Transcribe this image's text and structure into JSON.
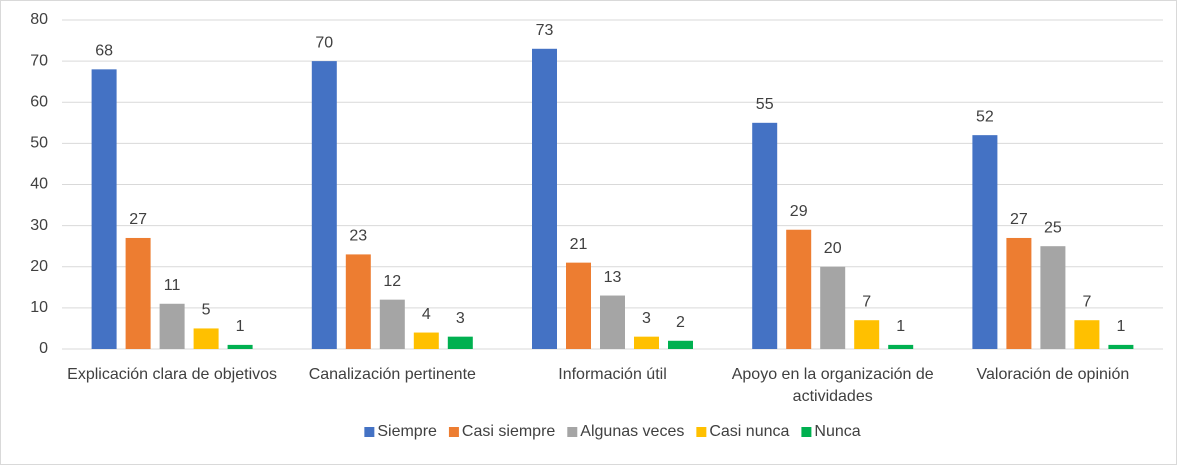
{
  "chart_data": {
    "type": "bar",
    "categories": [
      "Explicación clara de objetivos",
      "Canalización pertinente",
      "Información útil",
      "Apoyo en la organización de actividades",
      "Valoración de opinión"
    ],
    "series": [
      {
        "name": "Siempre",
        "color": "#4472c4",
        "values": [
          68,
          70,
          73,
          55,
          52
        ]
      },
      {
        "name": "Casi siempre",
        "color": "#ed7d31",
        "values": [
          27,
          23,
          21,
          29,
          27
        ]
      },
      {
        "name": "Algunas veces",
        "color": "#a5a5a5",
        "values": [
          11,
          12,
          13,
          20,
          25
        ]
      },
      {
        "name": "Casi nunca",
        "color": "#ffc000",
        "values": [
          5,
          4,
          3,
          7,
          7
        ]
      },
      {
        "name": "Nunca",
        "color": "#00b050",
        "values": [
          1,
          3,
          2,
          1,
          1
        ]
      }
    ],
    "ylim": [
      0,
      80
    ],
    "yticks": [
      0,
      10,
      20,
      30,
      40,
      50,
      60,
      70,
      80
    ],
    "grid": true,
    "legend": "bottom"
  }
}
